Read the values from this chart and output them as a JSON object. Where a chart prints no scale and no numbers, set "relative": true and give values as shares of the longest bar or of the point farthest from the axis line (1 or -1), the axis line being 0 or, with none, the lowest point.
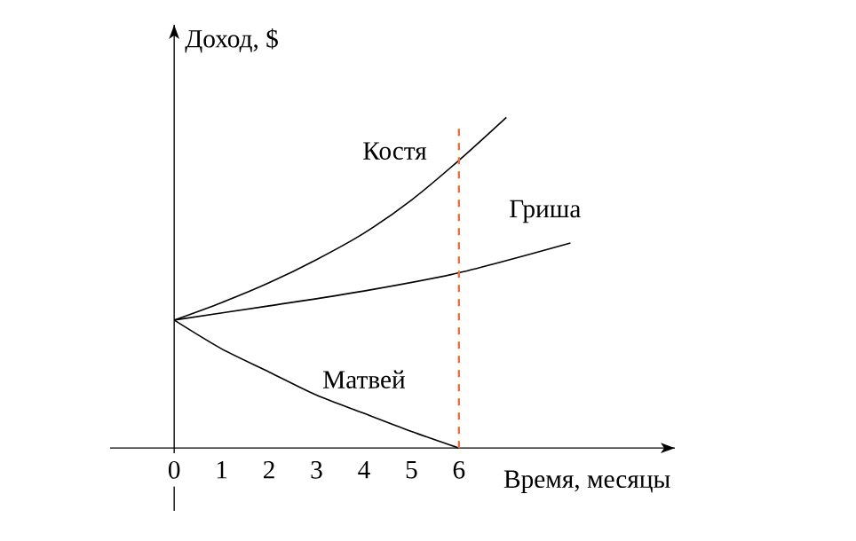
{
  "chart_data": {
    "type": "line",
    "relative": true,
    "xlabel": "Время, месяцы",
    "ylabel": "Доход, $",
    "xlim": [
      -1.35,
      10.55
    ],
    "xticks": [
      0,
      1,
      2,
      3,
      4,
      5,
      6
    ],
    "series": [
      {
        "name": "Костя",
        "color": "#000000",
        "x": [
          0,
          1,
          2,
          3,
          4,
          5,
          6,
          7
        ],
        "values": [
          0.387,
          0.44,
          0.5,
          0.57,
          0.65,
          0.75,
          0.87,
          1.0
        ]
      },
      {
        "name": "Гриша",
        "color": "#000000",
        "x": [
          0,
          2,
          4,
          6,
          8.35
        ],
        "values": [
          0.387,
          0.43,
          0.475,
          0.53,
          0.62
        ]
      },
      {
        "name": "Матвей",
        "color": "#000000",
        "x": [
          0,
          1,
          2,
          3,
          4,
          5,
          6
        ],
        "values": [
          0.387,
          0.3,
          0.23,
          0.16,
          0.105,
          0.05,
          0
        ]
      }
    ],
    "ref_lines": [
      {
        "axis": "x",
        "value": 6,
        "color": "#e8703a",
        "line_style": "dashed"
      }
    ],
    "grid": false,
    "marker": "none",
    "line_style": "solid"
  }
}
